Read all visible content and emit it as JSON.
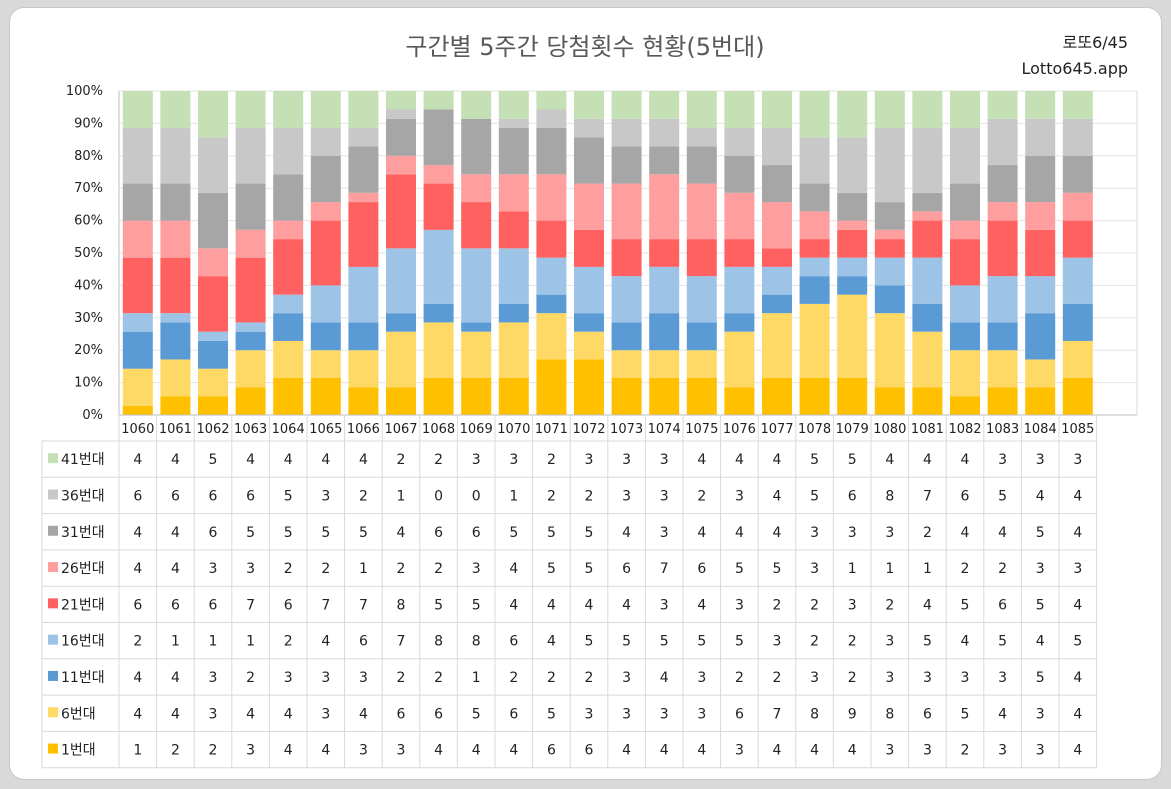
{
  "header": {
    "title": "구간별 5주간 당첨횟수 현황(5번대)",
    "brand_top": "로또6/45",
    "brand_bottom": "Lotto645.app"
  },
  "chart_data": {
    "type": "bar",
    "stacked": "percent",
    "title": "구간별 5주간 당첨횟수 현황(5번대)",
    "ylim": [
      0,
      100
    ],
    "yticks": [
      "0%",
      "10%",
      "20%",
      "30%",
      "40%",
      "50%",
      "60%",
      "70%",
      "80%",
      "90%",
      "100%"
    ],
    "categories": [
      "1060",
      "1061",
      "1062",
      "1063",
      "1064",
      "1065",
      "1066",
      "1067",
      "1068",
      "1069",
      "1070",
      "1071",
      "1072",
      "1073",
      "1074",
      "1075",
      "1076",
      "1077",
      "1078",
      "1079",
      "1080",
      "1081",
      "1082",
      "1083",
      "1084",
      "1085"
    ],
    "grid": true,
    "legend": "table-left",
    "series": [
      {
        "name": "1번대",
        "color": "#ffc000",
        "values": [
          1,
          2,
          2,
          3,
          4,
          4,
          3,
          3,
          4,
          4,
          4,
          6,
          6,
          4,
          4,
          4,
          3,
          4,
          4,
          4,
          3,
          3,
          2,
          3,
          3,
          4
        ]
      },
      {
        "name": "6번대",
        "color": "#ffd966",
        "values": [
          4,
          4,
          3,
          4,
          4,
          3,
          4,
          6,
          6,
          5,
          6,
          5,
          3,
          3,
          3,
          3,
          6,
          7,
          8,
          9,
          8,
          6,
          5,
          4,
          3,
          4
        ]
      },
      {
        "name": "11번대",
        "color": "#5b9bd5",
        "values": [
          4,
          4,
          3,
          2,
          3,
          3,
          3,
          2,
          2,
          1,
          2,
          2,
          2,
          3,
          4,
          3,
          2,
          2,
          3,
          2,
          3,
          3,
          3,
          3,
          5,
          4
        ]
      },
      {
        "name": "16번대",
        "color": "#9dc3e6",
        "values": [
          2,
          1,
          1,
          1,
          2,
          4,
          6,
          7,
          8,
          8,
          6,
          4,
          5,
          5,
          5,
          5,
          5,
          3,
          2,
          2,
          3,
          5,
          4,
          5,
          4,
          5
        ]
      },
      {
        "name": "21번대",
        "color": "#ff6161",
        "values": [
          6,
          6,
          6,
          7,
          6,
          7,
          7,
          8,
          5,
          5,
          4,
          4,
          4,
          4,
          3,
          4,
          3,
          2,
          2,
          3,
          2,
          4,
          5,
          6,
          5,
          4
        ]
      },
      {
        "name": "26번대",
        "color": "#ff9e9e",
        "values": [
          4,
          4,
          3,
          3,
          2,
          2,
          1,
          2,
          2,
          3,
          4,
          5,
          5,
          6,
          7,
          6,
          5,
          5,
          3,
          1,
          1,
          1,
          2,
          2,
          3,
          3
        ]
      },
      {
        "name": "31번대",
        "color": "#a6a6a6",
        "values": [
          4,
          4,
          6,
          5,
          5,
          5,
          5,
          4,
          6,
          6,
          5,
          5,
          5,
          4,
          3,
          4,
          4,
          4,
          3,
          3,
          3,
          2,
          4,
          4,
          5,
          4
        ]
      },
      {
        "name": "36번대",
        "color": "#c8c8c8",
        "values": [
          6,
          6,
          6,
          6,
          5,
          3,
          2,
          1,
          0,
          0,
          1,
          2,
          2,
          3,
          3,
          2,
          3,
          4,
          5,
          6,
          8,
          7,
          6,
          5,
          4,
          4
        ]
      },
      {
        "name": "41번대",
        "color": "#c5e0b4",
        "values": [
          4,
          4,
          5,
          4,
          4,
          4,
          4,
          2,
          2,
          3,
          3,
          2,
          3,
          3,
          3,
          4,
          4,
          4,
          5,
          5,
          4,
          4,
          4,
          3,
          3,
          3
        ]
      }
    ]
  }
}
